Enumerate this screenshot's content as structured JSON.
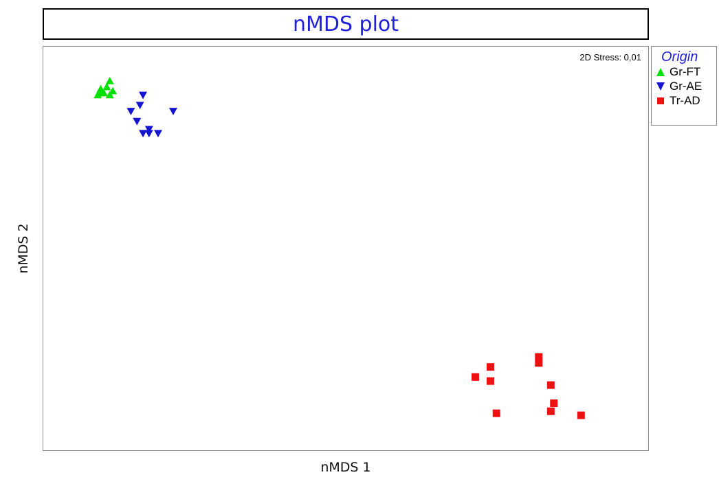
{
  "chart_data": {
    "type": "scatter",
    "title": "nMDS plot",
    "xlabel": "nMDS 1",
    "ylabel": "nMDS 2",
    "annotation": "2D Stress: 0,01",
    "grid": false,
    "legend_title": "Origin",
    "legend_placement": "top-right-outside",
    "xlim": [
      0,
      100
    ],
    "ylim": [
      0,
      100
    ],
    "series": [
      {
        "name": "Gr-FT",
        "marker": "triangle-up",
        "color": "#00e000",
        "points": [
          [
            11.0,
            91.5
          ],
          [
            9.5,
            89.5
          ],
          [
            10.5,
            90.0
          ],
          [
            11.5,
            89.0
          ],
          [
            9.5,
            88.5
          ],
          [
            10.0,
            88.5
          ],
          [
            11.0,
            88.0
          ],
          [
            9.0,
            88.0
          ]
        ]
      },
      {
        "name": "Gr-AE",
        "marker": "triangle-down",
        "color": "#1414d2",
        "points": [
          [
            16.5,
            88.0
          ],
          [
            16.0,
            85.5
          ],
          [
            14.5,
            84.0
          ],
          [
            21.5,
            84.0
          ],
          [
            15.5,
            81.5
          ],
          [
            17.5,
            79.5
          ],
          [
            16.5,
            78.5
          ],
          [
            17.5,
            78.5
          ],
          [
            19.0,
            78.5
          ]
        ]
      },
      {
        "name": "Tr-AD",
        "marker": "square",
        "color": "#ee1111",
        "points": [
          [
            82.0,
            23.0
          ],
          [
            82.0,
            21.5
          ],
          [
            74.0,
            20.5
          ],
          [
            74.0,
            17.0
          ],
          [
            71.5,
            18.0
          ],
          [
            84.0,
            16.0
          ],
          [
            84.5,
            11.5
          ],
          [
            84.0,
            9.5
          ],
          [
            75.0,
            9.0
          ],
          [
            89.0,
            8.5
          ]
        ]
      }
    ]
  }
}
